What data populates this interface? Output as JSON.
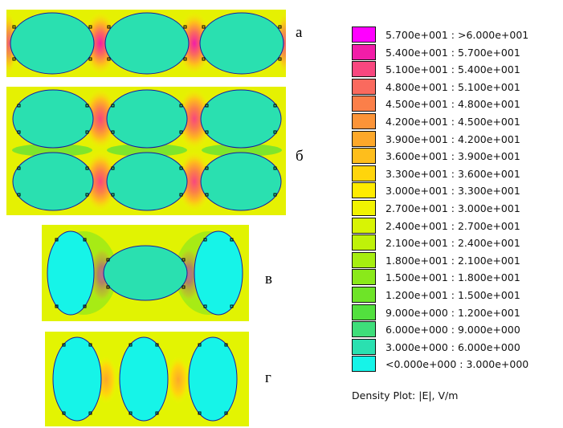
{
  "panels": [
    {
      "label": "а"
    },
    {
      "label": "б"
    },
    {
      "label": "в"
    },
    {
      "label": "г"
    }
  ],
  "legend": {
    "entries": [
      {
        "range": "5.700e+001 : >6.000e+001",
        "color": "#ff00ff"
      },
      {
        "range": "5.400e+001 : 5.700e+001",
        "color": "#f21da8"
      },
      {
        "range": "5.100e+001 : 5.400e+001",
        "color": "#f8477f"
      },
      {
        "range": "4.800e+001 : 5.100e+001",
        "color": "#fa6a5e"
      },
      {
        "range": "4.500e+001 : 4.800e+001",
        "color": "#fb7f49"
      },
      {
        "range": "4.200e+001 : 4.500e+001",
        "color": "#fc9438"
      },
      {
        "range": "3.900e+001 : 4.200e+001",
        "color": "#fda82a"
      },
      {
        "range": "3.600e+001 : 3.900e+001",
        "color": "#febe1c"
      },
      {
        "range": "3.300e+001 : 3.600e+001",
        "color": "#ffd50c"
      },
      {
        "range": "3.000e+001 : 3.300e+001",
        "color": "#ffeb00"
      },
      {
        "range": "2.700e+001 : 3.000e+001",
        "color": "#f1f301"
      },
      {
        "range": "2.400e+001 : 2.700e+001",
        "color": "#d8f404"
      },
      {
        "range": "2.100e+001 : 2.400e+001",
        "color": "#bff209"
      },
      {
        "range": "1.800e+001 : 2.100e+001",
        "color": "#a6ee10"
      },
      {
        "range": "1.500e+001 : 1.800e+001",
        "color": "#8ae91a"
      },
      {
        "range": "1.200e+001 : 1.500e+001",
        "color": "#6ee428"
      },
      {
        "range": "9.000e+000 : 1.200e+001",
        "color": "#52e03e"
      },
      {
        "range": "6.000e+000 : 9.000e+000",
        "color": "#3ede7a"
      },
      {
        "range": "3.000e+000 : 6.000e+000",
        "color": "#2ae0b0"
      },
      {
        "range": "<0.000e+000 : 3.000e+000",
        "color": "#16f4e8"
      }
    ],
    "caption": "Density Plot: |E|, V/m"
  }
}
